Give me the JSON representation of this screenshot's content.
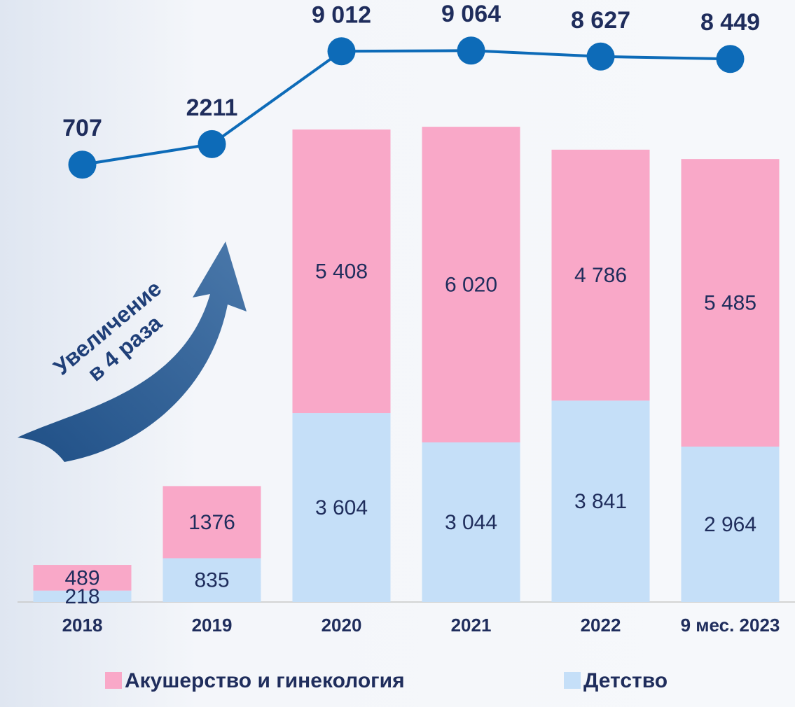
{
  "chart_data": {
    "type": "bar",
    "stacked": true,
    "categories": [
      "2018",
      "2019",
      "2020",
      "2021",
      "2022",
      "9 мес. 2023"
    ],
    "series": [
      {
        "name": "Детство",
        "color": "#c5dff8",
        "values": [
          218,
          835,
          3604,
          3044,
          3841,
          2964
        ],
        "value_labels": [
          "218",
          "835",
          "3 604",
          "3 044",
          "3 841",
          "2 964"
        ]
      },
      {
        "name": "Акушерство и гинекология",
        "color": "#f9a8c8",
        "values": [
          489,
          1376,
          5408,
          6020,
          4786,
          5485
        ],
        "value_labels": [
          "489",
          "1376",
          "5 408",
          "6 020",
          "4 786",
          "5 485"
        ]
      },
      {
        "type": "line",
        "axis": "y2",
        "color": "#0d6bb8",
        "values": [
          707,
          2211,
          9012,
          9064,
          8627,
          8449
        ],
        "value_labels": [
          "707",
          "2211",
          "9 012",
          "9 064",
          "8 627",
          "8 449"
        ]
      }
    ],
    "ylim": [
      0,
      10000
    ],
    "y2lim": [
      0,
      12000
    ],
    "annotation": [
      "Увеличение",
      "в 4 раза"
    ],
    "legend": "bottom"
  }
}
